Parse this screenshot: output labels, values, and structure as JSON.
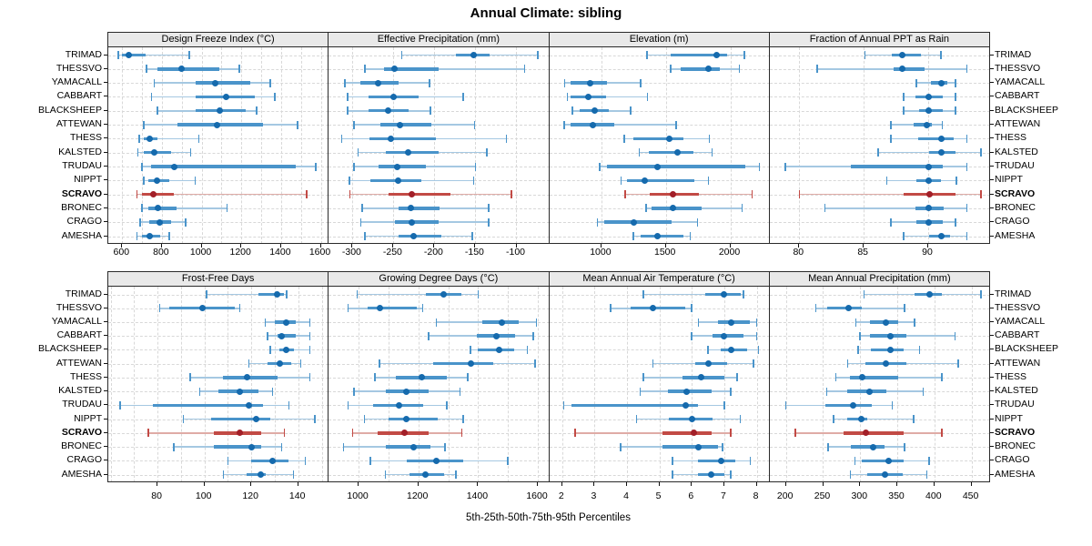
{
  "title": "Annual Climate: sibling",
  "caption": "5th-25th-50th-75th-95th Percentiles",
  "highlight_station": "SCRAVO",
  "stations": [
    "TRIMAD",
    "THESSVO",
    "YAMACALL",
    "CABBART",
    "BLACKSHEEP",
    "ATTEWAN",
    "THESS",
    "KALSTED",
    "TRUDAU",
    "NIPPT",
    "SCRAVO",
    "BRONEC",
    "CRAGO",
    "AMESHA"
  ],
  "colors": {
    "blue_dot": "#156aad",
    "blue_band": "#4a94ca",
    "blue_line": "#a5c8e2",
    "red_dot": "#a21f28",
    "red_band": "#c24a45",
    "red_line": "#dfaba6",
    "grid": "#d8d8d8",
    "strip_bg": "#e9e9e9",
    "border": "#2a2a2a"
  },
  "chart_data": {
    "type": "dot-interval trellis (5th-25th-50th-75th-95th percentile whisker plot)",
    "percentiles": [
      "5th",
      "25th",
      "50th",
      "75th",
      "95th"
    ],
    "legend_position": "none",
    "grid": "dashed, on",
    "panels": [
      {
        "title": "Design Freeze Index (°C)",
        "domain": [
          530,
          1640
        ],
        "ticks": [
          600,
          800,
          1000,
          1200,
          1400,
          1600
        ],
        "tick_labels": [
          "600",
          "800",
          "1000",
          "1200",
          "1400",
          "1600"
        ],
        "gridlines": [
          600,
          700,
          800,
          900,
          1000,
          1100,
          1200,
          1300,
          1400,
          1500,
          1600
        ],
        "series": [
          [
            580,
            597,
            635,
            720,
            938
          ],
          [
            722,
            778,
            900,
            1090,
            1190
          ],
          [
            762,
            968,
            1068,
            1246,
            1346
          ],
          [
            748,
            968,
            1122,
            1268,
            1368
          ],
          [
            778,
            968,
            1090,
            1222,
            1278
          ],
          [
            708,
            878,
            1076,
            1308,
            1484
          ],
          [
            685,
            708,
            738,
            778,
            985
          ],
          [
            678,
            708,
            762,
            845,
            945
          ],
          [
            700,
            745,
            860,
            1475,
            1575
          ],
          [
            708,
            730,
            777,
            838,
            968
          ],
          [
            674,
            700,
            756,
            860,
            1530
          ],
          [
            700,
            730,
            780,
            875,
            1128
          ],
          [
            690,
            738,
            790,
            845,
            920
          ],
          [
            674,
            700,
            740,
            790,
            838
          ]
        ]
      },
      {
        "title": "Effective Precipitation (mm)",
        "domain": [
          -329,
          -60
        ],
        "ticks": [
          -300,
          -250,
          -200,
          -150,
          -100
        ],
        "tick_labels": [
          "-300",
          "-250",
          "-200",
          "-150",
          "-100"
        ],
        "gridlines": [
          -300,
          -250,
          -200,
          -150,
          -100
        ],
        "series": [
          [
            -240,
            -174,
            -152,
            -133,
            -74
          ],
          [
            -285,
            -262,
            -249,
            -195,
            -90
          ],
          [
            -309,
            -290,
            -269,
            -244,
            -206
          ],
          [
            -306,
            -280,
            -250,
            -219,
            -165
          ],
          [
            -306,
            -280,
            -257,
            -231,
            -205
          ],
          [
            -298,
            -266,
            -242,
            -204,
            -151
          ],
          [
            -313,
            -279,
            -253,
            -198,
            -112
          ],
          [
            -293,
            -259,
            -232,
            -195,
            -136
          ],
          [
            -298,
            -268,
            -245,
            -210,
            -150
          ],
          [
            -304,
            -278,
            -244,
            -216,
            -152
          ],
          [
            -303,
            -256,
            -228,
            -180,
            -106
          ],
          [
            -288,
            -244,
            -229,
            -194,
            -134
          ],
          [
            -290,
            -248,
            -228,
            -195,
            -134
          ],
          [
            -285,
            -244,
            -226,
            -191,
            -154
          ]
        ]
      },
      {
        "title": "Elevation (m)",
        "domain": [
          595,
          2305
        ],
        "ticks": [
          1000,
          1500,
          2000
        ],
        "tick_labels": [
          "1000",
          "1500",
          "2000"
        ],
        "gridlines": [
          1000,
          1500,
          2000
        ],
        "series": [
          [
            1354,
            1540,
            1890,
            1972,
            2108
          ],
          [
            1538,
            1614,
            1830,
            1920,
            2072
          ],
          [
            716,
            764,
            914,
            1046,
            1306
          ],
          [
            736,
            764,
            900,
            1034,
            1358
          ],
          [
            776,
            830,
            948,
            1058,
            1228
          ],
          [
            710,
            764,
            930,
            1100,
            1578
          ],
          [
            1176,
            1248,
            1526,
            1636,
            1836
          ],
          [
            1294,
            1366,
            1590,
            1714,
            1860
          ],
          [
            988,
            1046,
            1432,
            2118,
            2226
          ],
          [
            1154,
            1196,
            1336,
            1718,
            1832
          ],
          [
            1184,
            1376,
            1554,
            1754,
            2168
          ],
          [
            1346,
            1390,
            1554,
            1778,
            2090
          ],
          [
            970,
            1024,
            1254,
            1544,
            1744
          ],
          [
            1248,
            1306,
            1436,
            1636,
            1690
          ]
        ]
      },
      {
        "title": "Fraction of Annual PPT as Rain",
        "domain": [
          77.7,
          94.8
        ],
        "ticks": [
          80,
          85,
          90
        ],
        "tick_labels": [
          "80",
          "85",
          "90"
        ],
        "gridlines": [
          80,
          85,
          90
        ],
        "series": [
          [
            85.1,
            87.2,
            88.0,
            89.4,
            91.0
          ],
          [
            81.4,
            87.3,
            88.0,
            89.7,
            93.0
          ],
          [
            89.1,
            90.2,
            91.0,
            91.5,
            92.1
          ],
          [
            88.1,
            89.0,
            90.0,
            91.1,
            92.1
          ],
          [
            88.1,
            89.3,
            90.0,
            91.1,
            92.1
          ],
          [
            87.1,
            88.9,
            89.9,
            90.3,
            91.1
          ],
          [
            87.1,
            89.2,
            91.0,
            92.0,
            93.0
          ],
          [
            86.1,
            90.1,
            91.0,
            92.1,
            94.1
          ],
          [
            78.9,
            84.0,
            90.0,
            91.1,
            93.0
          ],
          [
            86.8,
            89.1,
            90.0,
            91.0,
            92.2
          ],
          [
            80.0,
            88.1,
            90.1,
            92.1,
            94.1
          ],
          [
            82.0,
            89.0,
            90.0,
            91.2,
            93.0
          ],
          [
            87.1,
            89.1,
            90.0,
            91.1,
            92.1
          ],
          [
            88.1,
            90.1,
            91.0,
            91.7,
            93.0
          ]
        ]
      },
      {
        "title": "Frost-Free Days",
        "domain": [
          59,
          153
        ],
        "ticks": [
          80,
          100,
          120,
          140
        ],
        "tick_labels": [
          "80",
          "100",
          "120",
          "140"
        ],
        "gridlines": [
          60,
          70,
          80,
          90,
          100,
          110,
          120,
          130,
          140,
          150
        ],
        "series": [
          [
            101,
            123,
            131,
            134,
            135
          ],
          [
            81,
            85,
            99,
            113,
            115
          ],
          [
            126,
            130,
            135,
            139,
            145
          ],
          [
            127,
            131,
            133,
            139,
            145
          ],
          [
            128,
            132,
            135,
            138,
            145
          ],
          [
            119,
            127,
            132,
            137,
            141
          ],
          [
            94,
            108,
            118,
            131,
            145
          ],
          [
            98,
            106,
            115,
            123,
            129
          ],
          [
            64,
            78,
            119,
            125,
            136
          ],
          [
            91,
            103,
            122,
            128,
            147
          ],
          [
            76,
            104,
            115,
            124,
            134
          ],
          [
            87,
            104,
            120,
            124,
            133
          ],
          [
            110,
            120,
            129,
            136,
            143
          ],
          [
            108,
            118,
            124,
            126,
            138
          ]
        ]
      },
      {
        "title": "Growing Degree Days (°C)",
        "domain": [
          900,
          1638
        ],
        "ticks": [
          1000,
          1200,
          1400,
          1600
        ],
        "tick_labels": [
          "1000",
          "1200",
          "1400",
          "1600"
        ],
        "gridlines": [
          1000,
          1100,
          1200,
          1300,
          1400,
          1500,
          1600
        ],
        "series": [
          [
            995,
            1225,
            1285,
            1345,
            1400
          ],
          [
            965,
            1030,
            1070,
            1195,
            1215
          ],
          [
            1260,
            1415,
            1480,
            1535,
            1595
          ],
          [
            1235,
            1395,
            1460,
            1525,
            1585
          ],
          [
            1375,
            1400,
            1470,
            1520,
            1565
          ],
          [
            1070,
            1250,
            1375,
            1450,
            1590
          ],
          [
            1055,
            1125,
            1210,
            1295,
            1365
          ],
          [
            985,
            1090,
            1160,
            1235,
            1340
          ],
          [
            965,
            1050,
            1135,
            1215,
            1295
          ],
          [
            1020,
            1100,
            1160,
            1265,
            1350
          ],
          [
            980,
            1065,
            1155,
            1235,
            1345
          ],
          [
            950,
            1090,
            1185,
            1240,
            1290
          ],
          [
            1040,
            1160,
            1260,
            1350,
            1500
          ],
          [
            1090,
            1170,
            1225,
            1285,
            1325
          ]
        ]
      },
      {
        "title": "Mean Annual Air Temperature (°C)",
        "domain": [
          1.6,
          8.4
        ],
        "ticks": [
          2,
          3,
          4,
          5,
          6,
          7,
          8
        ],
        "tick_labels": [
          "2",
          "3",
          "4",
          "5",
          "6",
          "7",
          "8"
        ],
        "gridlines": [
          2,
          3,
          4,
          5,
          6,
          7,
          8
        ],
        "series": [
          [
            4.5,
            6.4,
            7.0,
            7.5,
            7.6
          ],
          [
            3.5,
            4.1,
            4.8,
            5.8,
            6.0
          ],
          [
            6.2,
            6.8,
            7.2,
            7.8,
            8.0
          ],
          [
            6.0,
            6.65,
            7.0,
            7.6,
            8.0
          ],
          [
            6.5,
            6.9,
            7.2,
            7.7,
            8.05
          ],
          [
            4.8,
            6.1,
            6.5,
            7.1,
            7.9
          ],
          [
            4.5,
            5.7,
            6.3,
            7.0,
            7.4
          ],
          [
            4.4,
            5.25,
            5.85,
            6.6,
            7.2
          ],
          [
            2.05,
            2.3,
            5.8,
            6.2,
            7.0
          ],
          [
            4.3,
            5.3,
            6.0,
            6.65,
            7.5
          ],
          [
            2.4,
            5.1,
            6.05,
            6.6,
            7.2
          ],
          [
            3.8,
            5.1,
            6.2,
            6.8,
            6.95
          ],
          [
            5.4,
            6.2,
            6.9,
            7.35,
            7.8
          ],
          [
            5.4,
            6.2,
            6.6,
            7.0,
            7.2
          ]
        ]
      },
      {
        "title": "Mean Annual Precipitation (mm)",
        "domain": [
          178,
          475
        ],
        "ticks": [
          200,
          250,
          300,
          350,
          400,
          450
        ],
        "tick_labels": [
          "200",
          "250",
          "300",
          "350",
          "400",
          "450"
        ],
        "gridlines": [
          200,
          250,
          300,
          350,
          400,
          450
        ],
        "series": [
          [
            305,
            373,
            393,
            410,
            463
          ],
          [
            240,
            256,
            284,
            302,
            360
          ],
          [
            294,
            313,
            335,
            351,
            373
          ],
          [
            300,
            313,
            341,
            362,
            428
          ],
          [
            297,
            315,
            341,
            358,
            380
          ],
          [
            283,
            307,
            335,
            362,
            432
          ],
          [
            267,
            286,
            303,
            351,
            410
          ],
          [
            255,
            283,
            313,
            335,
            385
          ],
          [
            200,
            253,
            290,
            315,
            343
          ],
          [
            264,
            282,
            302,
            309,
            372
          ],
          [
            213,
            277,
            308,
            358,
            410
          ],
          [
            257,
            288,
            317,
            333,
            360
          ],
          [
            293,
            302,
            338,
            358,
            393
          ],
          [
            287,
            309,
            333,
            357,
            390
          ]
        ]
      }
    ]
  }
}
